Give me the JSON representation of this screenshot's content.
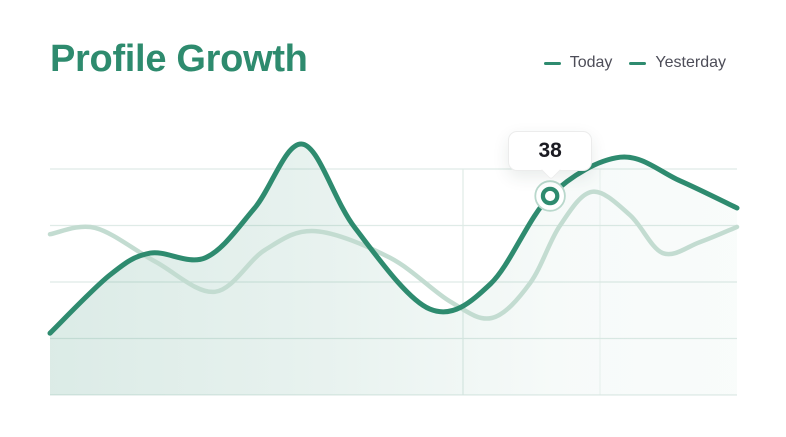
{
  "page": {
    "title": "Profile Growth"
  },
  "legend": {
    "items": [
      {
        "label": "Today"
      },
      {
        "label": "Yesterday"
      }
    ]
  },
  "tooltip": {
    "value": "38"
  },
  "colors": {
    "title": "#2E8B6E",
    "today_line": "#2E8B6F",
    "yesterday_line": "#C3DCD1",
    "grid": "#DFEBE7",
    "legend_text": "#4D4D58",
    "tooltip_text": "#1B1B22",
    "marker_ring_outer": "#B9D8CC",
    "area_fill_base": "#2E8B6F",
    "background": "#FFFFFF"
  },
  "chart_data": {
    "type": "line",
    "title": "Profile Growth",
    "subtitle": "",
    "xlabel": "",
    "ylabel": "",
    "x_axis": {
      "visible": false,
      "tick_labels": []
    },
    "y_axis": {
      "visible": false,
      "tick_labels": [],
      "gridlines": 5,
      "approx_units_per_gridline": 10.8
    },
    "ylim": [
      0,
      52
    ],
    "grid": "horizontal (5 lines) + 2 faint vertical lines",
    "legend_position": "top-right",
    "highlight": {
      "series": "Today",
      "point_index": 9,
      "value": 38
    },
    "series": [
      {
        "name": "Today",
        "color": "#2E8B6F",
        "area_fill": true,
        "points": [
          [
            0.0,
            11.8
          ],
          [
            0.087,
            22.9
          ],
          [
            0.146,
            27.1
          ],
          [
            0.226,
            26.2
          ],
          [
            0.298,
            35.7
          ],
          [
            0.368,
            47.9
          ],
          [
            0.444,
            31.9
          ],
          [
            0.553,
            16.4
          ],
          [
            0.641,
            21.2
          ],
          [
            0.728,
            38.0
          ],
          [
            0.83,
            45.4
          ],
          [
            0.917,
            40.9
          ],
          [
            1.0,
            35.7
          ]
        ]
      },
      {
        "name": "Yesterday",
        "color": "#C3DCD1",
        "area_fill": false,
        "points": [
          [
            0.0,
            30.7
          ],
          [
            0.066,
            31.9
          ],
          [
            0.153,
            25.5
          ],
          [
            0.24,
            19.7
          ],
          [
            0.313,
            27.7
          ],
          [
            0.386,
            31.3
          ],
          [
            0.495,
            26.2
          ],
          [
            0.582,
            17.9
          ],
          [
            0.643,
            14.7
          ],
          [
            0.699,
            21.4
          ],
          [
            0.742,
            32.3
          ],
          [
            0.789,
            38.8
          ],
          [
            0.844,
            34.4
          ],
          [
            0.892,
            27.1
          ],
          [
            0.946,
            29.2
          ],
          [
            1.0,
            32.1
          ]
        ]
      }
    ]
  }
}
